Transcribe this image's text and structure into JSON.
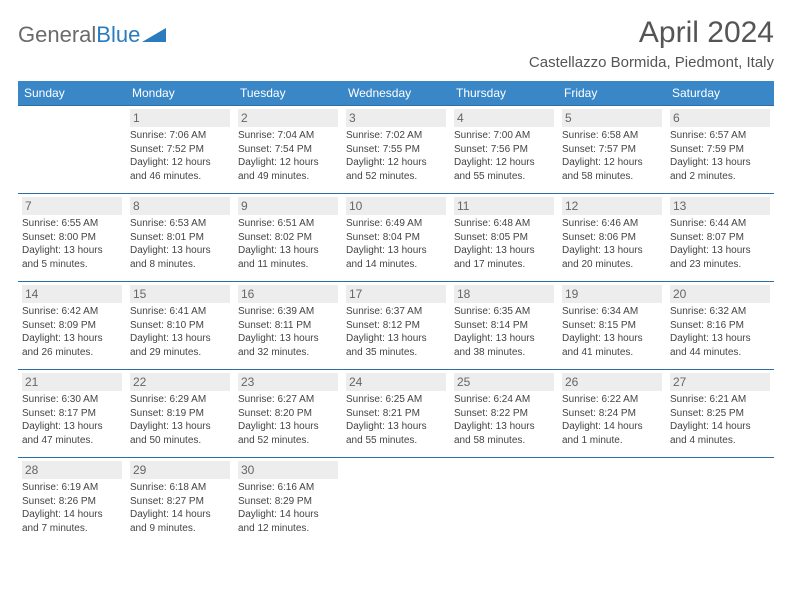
{
  "logo": {
    "word1": "General",
    "word2": "Blue"
  },
  "header": {
    "title": "April 2024",
    "location": "Castellazzo Bormida, Piedmont, Italy"
  },
  "colors": {
    "header_bg": "#3a87c7",
    "header_fg": "#ffffff",
    "border": "#2f6ea3",
    "daynum_bg": "#ededed",
    "text": "#444444",
    "logo_gray": "#6b6b6b",
    "logo_blue": "#2b7bbf"
  },
  "weekdays": [
    "Sunday",
    "Monday",
    "Tuesday",
    "Wednesday",
    "Thursday",
    "Friday",
    "Saturday"
  ],
  "grid": {
    "first_weekday_index": 1,
    "days_in_month": 30
  },
  "days": {
    "1": {
      "sunrise": "7:06 AM",
      "sunset": "7:52 PM",
      "daylight": "12 hours and 46 minutes."
    },
    "2": {
      "sunrise": "7:04 AM",
      "sunset": "7:54 PM",
      "daylight": "12 hours and 49 minutes."
    },
    "3": {
      "sunrise": "7:02 AM",
      "sunset": "7:55 PM",
      "daylight": "12 hours and 52 minutes."
    },
    "4": {
      "sunrise": "7:00 AM",
      "sunset": "7:56 PM",
      "daylight": "12 hours and 55 minutes."
    },
    "5": {
      "sunrise": "6:58 AM",
      "sunset": "7:57 PM",
      "daylight": "12 hours and 58 minutes."
    },
    "6": {
      "sunrise": "6:57 AM",
      "sunset": "7:59 PM",
      "daylight": "13 hours and 2 minutes."
    },
    "7": {
      "sunrise": "6:55 AM",
      "sunset": "8:00 PM",
      "daylight": "13 hours and 5 minutes."
    },
    "8": {
      "sunrise": "6:53 AM",
      "sunset": "8:01 PM",
      "daylight": "13 hours and 8 minutes."
    },
    "9": {
      "sunrise": "6:51 AM",
      "sunset": "8:02 PM",
      "daylight": "13 hours and 11 minutes."
    },
    "10": {
      "sunrise": "6:49 AM",
      "sunset": "8:04 PM",
      "daylight": "13 hours and 14 minutes."
    },
    "11": {
      "sunrise": "6:48 AM",
      "sunset": "8:05 PM",
      "daylight": "13 hours and 17 minutes."
    },
    "12": {
      "sunrise": "6:46 AM",
      "sunset": "8:06 PM",
      "daylight": "13 hours and 20 minutes."
    },
    "13": {
      "sunrise": "6:44 AM",
      "sunset": "8:07 PM",
      "daylight": "13 hours and 23 minutes."
    },
    "14": {
      "sunrise": "6:42 AM",
      "sunset": "8:09 PM",
      "daylight": "13 hours and 26 minutes."
    },
    "15": {
      "sunrise": "6:41 AM",
      "sunset": "8:10 PM",
      "daylight": "13 hours and 29 minutes."
    },
    "16": {
      "sunrise": "6:39 AM",
      "sunset": "8:11 PM",
      "daylight": "13 hours and 32 minutes."
    },
    "17": {
      "sunrise": "6:37 AM",
      "sunset": "8:12 PM",
      "daylight": "13 hours and 35 minutes."
    },
    "18": {
      "sunrise": "6:35 AM",
      "sunset": "8:14 PM",
      "daylight": "13 hours and 38 minutes."
    },
    "19": {
      "sunrise": "6:34 AM",
      "sunset": "8:15 PM",
      "daylight": "13 hours and 41 minutes."
    },
    "20": {
      "sunrise": "6:32 AM",
      "sunset": "8:16 PM",
      "daylight": "13 hours and 44 minutes."
    },
    "21": {
      "sunrise": "6:30 AM",
      "sunset": "8:17 PM",
      "daylight": "13 hours and 47 minutes."
    },
    "22": {
      "sunrise": "6:29 AM",
      "sunset": "8:19 PM",
      "daylight": "13 hours and 50 minutes."
    },
    "23": {
      "sunrise": "6:27 AM",
      "sunset": "8:20 PM",
      "daylight": "13 hours and 52 minutes."
    },
    "24": {
      "sunrise": "6:25 AM",
      "sunset": "8:21 PM",
      "daylight": "13 hours and 55 minutes."
    },
    "25": {
      "sunrise": "6:24 AM",
      "sunset": "8:22 PM",
      "daylight": "13 hours and 58 minutes."
    },
    "26": {
      "sunrise": "6:22 AM",
      "sunset": "8:24 PM",
      "daylight": "14 hours and 1 minute."
    },
    "27": {
      "sunrise": "6:21 AM",
      "sunset": "8:25 PM",
      "daylight": "14 hours and 4 minutes."
    },
    "28": {
      "sunrise": "6:19 AM",
      "sunset": "8:26 PM",
      "daylight": "14 hours and 7 minutes."
    },
    "29": {
      "sunrise": "6:18 AM",
      "sunset": "8:27 PM",
      "daylight": "14 hours and 9 minutes."
    },
    "30": {
      "sunrise": "6:16 AM",
      "sunset": "8:29 PM",
      "daylight": "14 hours and 12 minutes."
    }
  },
  "labels": {
    "sunrise": "Sunrise:",
    "sunset": "Sunset:",
    "daylight": "Daylight:"
  }
}
